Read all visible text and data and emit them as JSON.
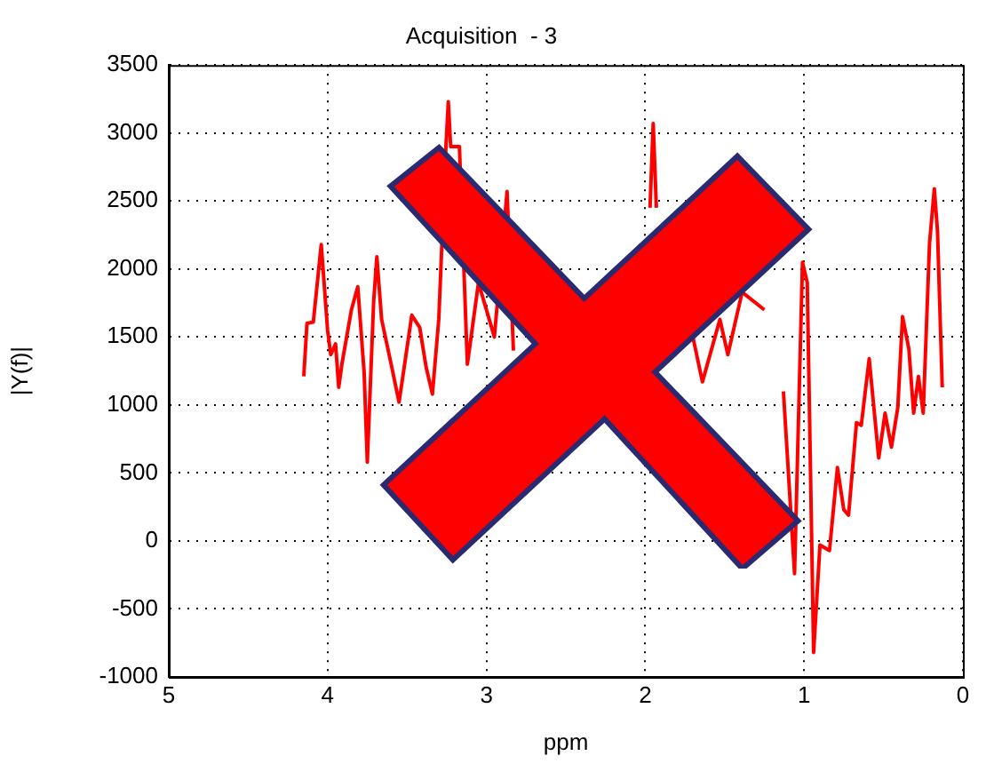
{
  "chart_data": {
    "type": "line",
    "title": "Acquisition  - 3",
    "xlabel": "ppm",
    "ylabel": "|Y(f)|",
    "xlim": [
      5,
      0
    ],
    "xticks": [
      5,
      4,
      3,
      2,
      1,
      0
    ],
    "ylim": [
      -1000,
      3500
    ],
    "yticks": [
      -1000,
      -500,
      0,
      500,
      1000,
      1500,
      2000,
      2500,
      3000,
      3500
    ],
    "grid": true,
    "legend": false,
    "marker": "none",
    "line_style": "solid",
    "series": [
      {
        "color": "#ff0000",
        "x": [
          4.15,
          4.13,
          4.09,
          4.04,
          4.0,
          3.98,
          3.95,
          3.93,
          3.91,
          3.85,
          3.81,
          3.77,
          3.75,
          3.71,
          3.69,
          3.66,
          3.6,
          3.55,
          3.47,
          3.42,
          3.38,
          3.34,
          3.3,
          3.255,
          3.24,
          3.225,
          3.17,
          3.12,
          3.05,
          2.95,
          2.87,
          2.83,
          2.71,
          2.6,
          2.4,
          1.97,
          1.95,
          1.93,
          1.8,
          1.7,
          1.64,
          1.53,
          1.48,
          1.39,
          1.25,
          1.2,
          1.13,
          1.06,
          1.01,
          0.98,
          0.94,
          0.9,
          0.84,
          0.79,
          0.75,
          0.72,
          0.67,
          0.64,
          0.59,
          0.53,
          0.49,
          0.45,
          0.41,
          0.38,
          0.34,
          0.31,
          0.28,
          0.25,
          0.21,
          0.18,
          0.16,
          0.13
        ],
        "values": [
          1210,
          1600,
          1610,
          2180,
          1550,
          1370,
          1450,
          1130,
          1300,
          1700,
          1870,
          1240,
          580,
          1760,
          2090,
          1630,
          1300,
          1020,
          1660,
          1570,
          1280,
          1080,
          1630,
          2900,
          3230,
          2900,
          2900,
          1300,
          1900,
          1500,
          2570,
          1400,
          null,
          null,
          null,
          2450,
          3070,
          2450,
          null,
          1500,
          1170,
          1630,
          1370,
          1830,
          1700,
          null,
          1100,
          -240,
          2050,
          1900,
          -820,
          -30,
          -70,
          540,
          230,
          190,
          870,
          850,
          1340,
          610,
          940,
          690,
          980,
          1650,
          1410,
          940,
          1210,
          940,
          2190,
          2590,
          2280,
          1130
        ]
      }
    ]
  }
}
